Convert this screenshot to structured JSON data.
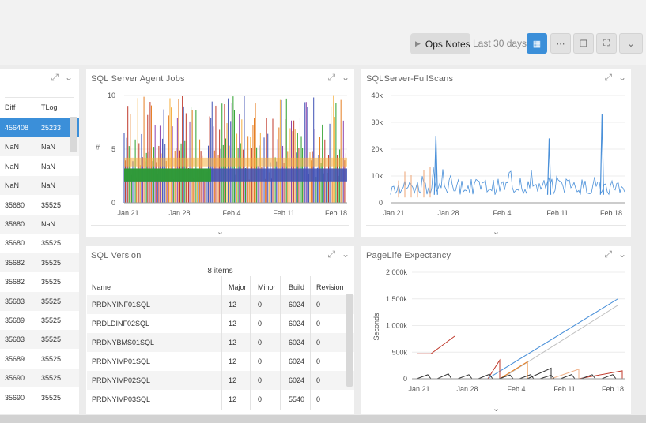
{
  "toolbar": {
    "ops_notes": "Ops Notes",
    "range": "Last 30 days",
    "buttons": [
      "calendar-icon",
      "dots-icon",
      "copy-icon",
      "expand-icon",
      "chevron-down-icon"
    ]
  },
  "left_table": {
    "headers": [
      "Diff",
      "TLog"
    ],
    "rows": [
      [
        "456408",
        "25233"
      ],
      [
        "NaN",
        "NaN"
      ],
      [
        "NaN",
        "NaN"
      ],
      [
        "NaN",
        "NaN"
      ],
      [
        "35680",
        "35525"
      ],
      [
        "35680",
        "NaN"
      ],
      [
        "35680",
        "35525"
      ],
      [
        "35682",
        "35525"
      ],
      [
        "35682",
        "35525"
      ],
      [
        "35683",
        "35525"
      ],
      [
        "35689",
        "35525"
      ],
      [
        "35683",
        "35525"
      ],
      [
        "35689",
        "35525"
      ],
      [
        "35690",
        "35525"
      ],
      [
        "35690",
        "35525"
      ]
    ]
  },
  "panels": {
    "agent_jobs": "SQL Server Agent Jobs",
    "fullscans": "SQLServer-FullScans",
    "version": "SQL Version",
    "pagelife": "PageLife Expectancy"
  },
  "sql_version": {
    "count": "8 items",
    "headers": [
      "Name",
      "Major",
      "Minor",
      "Build",
      "Revision"
    ],
    "rows": [
      [
        "PRDNYINF01SQL",
        "12",
        "0",
        "6024",
        "0"
      ],
      [
        "PRDLDINF02SQL",
        "12",
        "0",
        "6024",
        "0"
      ],
      [
        "PRDNYBMS01SQL",
        "12",
        "0",
        "6024",
        "0"
      ],
      [
        "PRDNYIVP01SQL",
        "12",
        "0",
        "6024",
        "0"
      ],
      [
        "PRDNYIVP02SQL",
        "12",
        "0",
        "6024",
        "0"
      ],
      [
        "PRDNYIVP03SQL",
        "12",
        "0",
        "5540",
        "0"
      ]
    ]
  },
  "chart_data": [
    {
      "type": "bar",
      "title": "SQL Server Agent Jobs",
      "ylim": [
        0,
        10
      ],
      "yticks": [
        "10",
        "5",
        "0"
      ],
      "ylabel": "#",
      "xticks": [
        "Jan 21",
        "Jan 28",
        "Feb 4",
        "Feb 11",
        "Feb 18"
      ],
      "colors": [
        "#c0392b",
        "#e67e22",
        "#3f51b5",
        "#2ca02c",
        "#8e44ad",
        "#f5b041"
      ],
      "grid": true
    },
    {
      "type": "line",
      "title": "SQLServer-FullScans",
      "ylim": [
        0,
        40000
      ],
      "yticks": [
        "40k",
        "30k",
        "20k",
        "10k",
        "0"
      ],
      "xticks": [
        "Jan 21",
        "Jan 28",
        "Feb 4",
        "Feb 11",
        "Feb 18"
      ],
      "series_colors": [
        "#4a90d9",
        "#f0b28a",
        "#999999"
      ],
      "spikes_approx": [
        {
          "x": "Jan 25",
          "y": 25000
        },
        {
          "x": "Feb 9",
          "y": 24000
        },
        {
          "x": "Feb 16",
          "y": 33000
        }
      ],
      "baseline_approx": 3000
    },
    {
      "type": "line",
      "title": "PageLife Expectancy",
      "ylabel": "Seconds",
      "ylim": [
        0,
        2000000
      ],
      "yticks": [
        "2 000k",
        "1 500k",
        "1 000k",
        "500k",
        "0"
      ],
      "xticks": [
        "Jan 21",
        "Jan 28",
        "Feb 4",
        "Feb 11",
        "Feb 18"
      ],
      "series_colors": [
        "#4a90d9",
        "#c0c0c0",
        "#c0392b",
        "#e67e22",
        "#333333",
        "#f0b28a"
      ],
      "series": [
        {
          "name": "",
          "start": {
            "x": "Jan 30",
            "y": 0
          },
          "end": {
            "x": "Feb 18",
            "y": 1500000
          }
        },
        {
          "name": "",
          "start": {
            "x": "Feb 1",
            "y": 0
          },
          "end": {
            "x": "Feb 18",
            "y": 1380000
          }
        }
      ]
    }
  ]
}
